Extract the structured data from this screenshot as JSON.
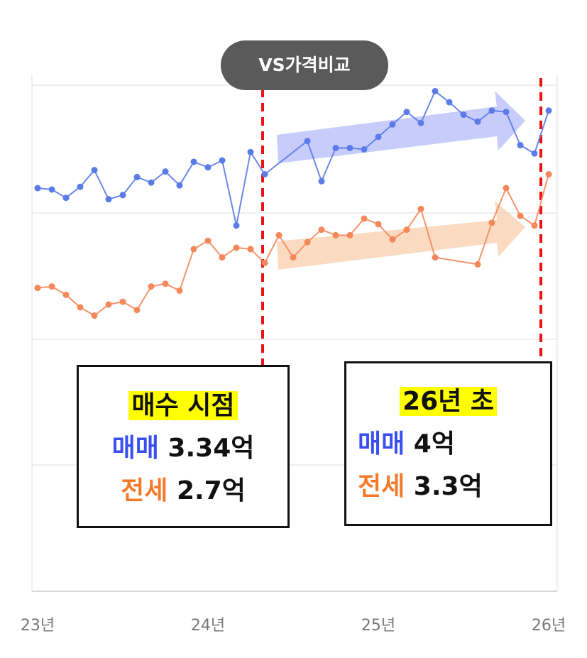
{
  "ui": {
    "button": "VS가격비교"
  },
  "chart_data": {
    "type": "line",
    "xlim": [
      -0.4,
      36.6
    ],
    "ylim": [
      0.33,
      4.06
    ],
    "xticks": [
      {
        "value": 0,
        "label": "23년"
      },
      {
        "value": 12,
        "label": "24년"
      },
      {
        "value": 24,
        "label": "25년"
      },
      {
        "value": 36,
        "label": "26년"
      }
    ],
    "series": [
      {
        "name": "매매",
        "color": "#5b7be8",
        "x": [
          0,
          1,
          2,
          3,
          4,
          5,
          6,
          7,
          8,
          9,
          10,
          11,
          12,
          13,
          14,
          15,
          16,
          19,
          20,
          21,
          22,
          23,
          24,
          25,
          26,
          27,
          28,
          29,
          30,
          31,
          32,
          33,
          34,
          35,
          36
        ],
        "values": [
          3.24,
          3.23,
          3.17,
          3.25,
          3.37,
          3.16,
          3.19,
          3.32,
          3.28,
          3.36,
          3.26,
          3.43,
          3.39,
          3.44,
          2.97,
          3.5,
          3.34,
          3.58,
          3.29,
          3.53,
          3.53,
          3.52,
          3.61,
          3.7,
          3.79,
          3.71,
          3.94,
          3.86,
          3.77,
          3.72,
          3.8,
          3.79,
          3.55,
          3.49,
          3.8
        ]
      },
      {
        "name": "전세",
        "color": "#f4885a",
        "x": [
          0,
          1,
          2,
          3,
          4,
          5,
          6,
          7,
          8,
          9,
          10,
          11,
          12,
          13,
          14,
          15,
          16,
          17,
          18,
          19,
          20,
          21,
          22,
          23,
          24,
          25,
          26,
          27,
          28,
          31,
          32,
          33,
          34,
          35,
          36
        ],
        "values": [
          2.52,
          2.53,
          2.47,
          2.38,
          2.32,
          2.4,
          2.42,
          2.36,
          2.53,
          2.55,
          2.5,
          2.8,
          2.86,
          2.74,
          2.81,
          2.8,
          2.7,
          2.9,
          2.74,
          2.85,
          2.94,
          2.9,
          2.9,
          3.02,
          2.98,
          2.87,
          2.94,
          3.09,
          2.74,
          2.69,
          2.99,
          3.24,
          3.04,
          2.97,
          3.34
        ]
      }
    ],
    "annotations": [
      {
        "title": "매수 시점",
        "values": [
          "3.34억",
          "2.7억"
        ]
      },
      {
        "title": "26년 초",
        "values": [
          "4억",
          "3.3억"
        ]
      }
    ]
  }
}
